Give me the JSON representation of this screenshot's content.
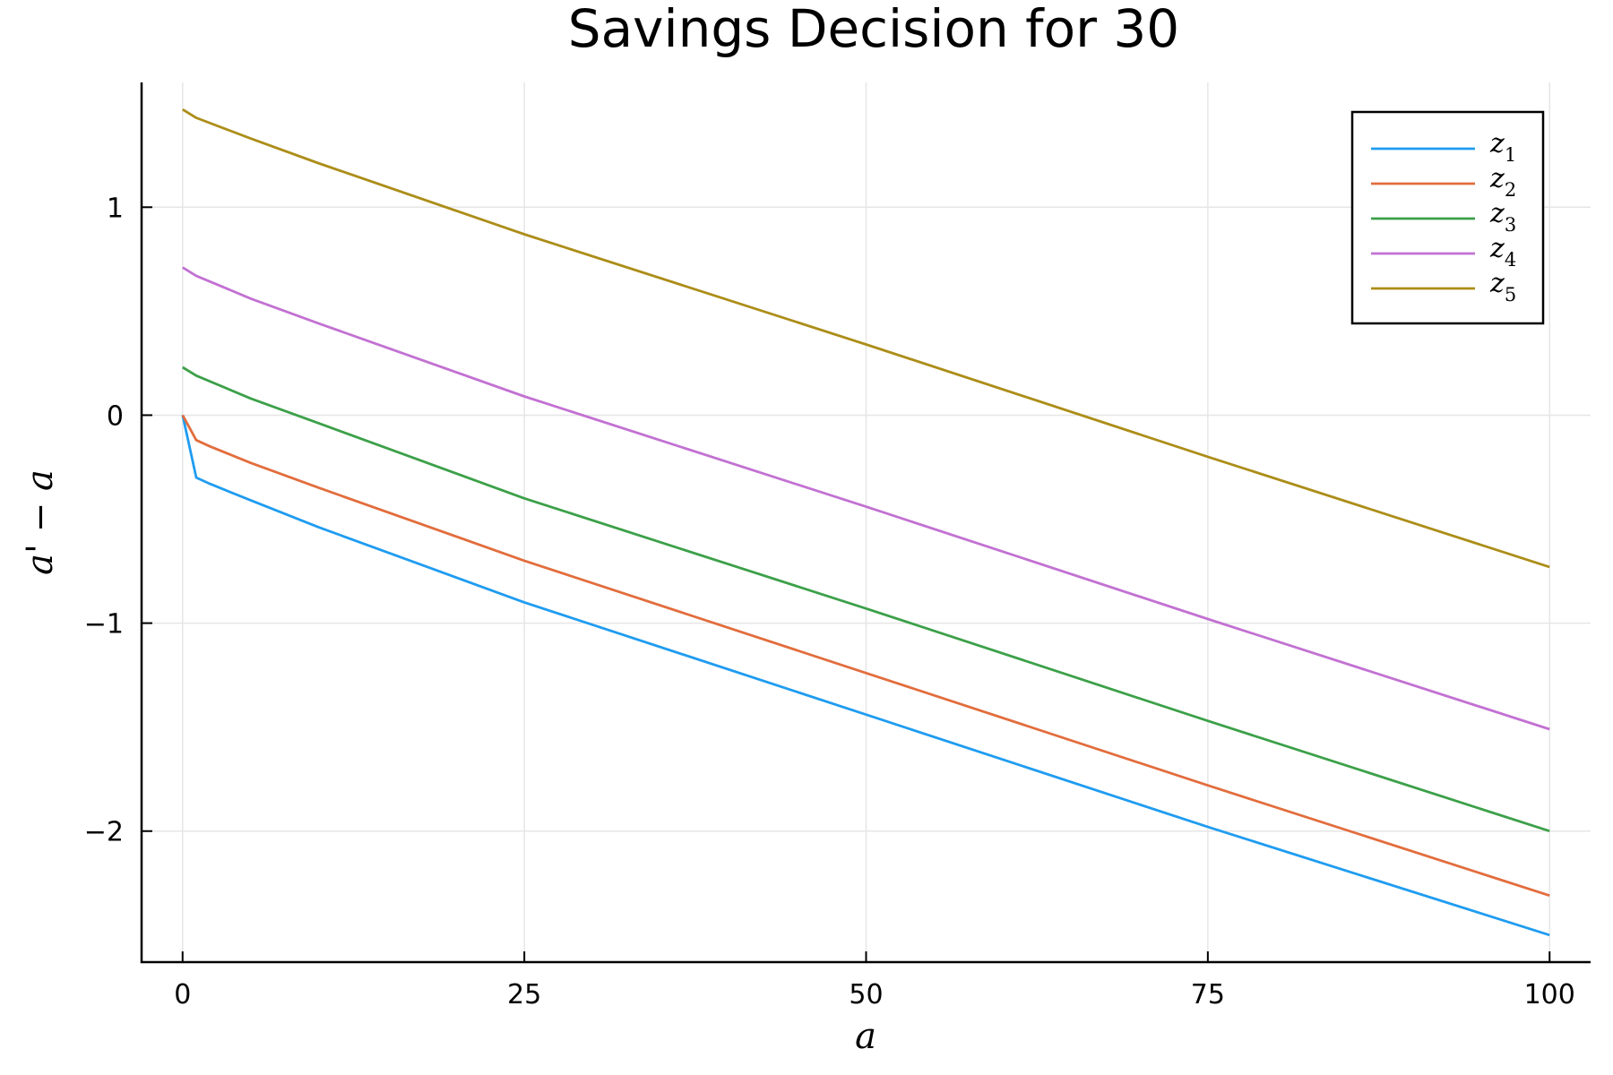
{
  "chart_data": {
    "type": "line",
    "title": "Savings Decision for 30",
    "xlabel": "a",
    "ylabel": "a' − a",
    "xlim": [
      -3,
      103
    ],
    "ylim": [
      -2.63,
      1.6
    ],
    "xticks": [
      0,
      25,
      50,
      75,
      100
    ],
    "xtick_labels": [
      "0",
      "25",
      "50",
      "75",
      "100"
    ],
    "yticks": [
      -2,
      -1,
      0,
      1
    ],
    "ytick_labels": [
      "−2",
      "−1",
      "0",
      "1"
    ],
    "grid": true,
    "legend_position": "top-right",
    "series": [
      {
        "name": "z",
        "sub": "1",
        "color": "#1f9cf0",
        "x": [
          0,
          1,
          2,
          5,
          10,
          25,
          50,
          75,
          100
        ],
        "y": [
          0,
          -0.3,
          -0.33,
          -0.41,
          -0.54,
          -0.9,
          -1.44,
          -1.98,
          -2.5
        ]
      },
      {
        "name": "z",
        "sub": "2",
        "color": "#e26d3d",
        "x": [
          0,
          1,
          2,
          5,
          10,
          25,
          50,
          75,
          100
        ],
        "y": [
          0,
          -0.12,
          -0.15,
          -0.23,
          -0.35,
          -0.7,
          -1.24,
          -1.78,
          -2.31
        ]
      },
      {
        "name": "z",
        "sub": "3",
        "color": "#3ca049",
        "x": [
          0,
          1,
          5,
          10,
          25,
          50,
          75,
          100
        ],
        "y": [
          0.23,
          0.19,
          0.08,
          -0.04,
          -0.4,
          -0.93,
          -1.47,
          -2.0
        ]
      },
      {
        "name": "z",
        "sub": "4",
        "color": "#c271d2",
        "x": [
          0,
          1,
          5,
          10,
          25,
          50,
          75,
          100
        ],
        "y": [
          0.71,
          0.67,
          0.56,
          0.44,
          0.09,
          -0.44,
          -0.98,
          -1.51
        ]
      },
      {
        "name": "z",
        "sub": "5",
        "color": "#ac8d18",
        "x": [
          0,
          1,
          5,
          10,
          25,
          50,
          75,
          100
        ],
        "y": [
          1.47,
          1.43,
          1.33,
          1.21,
          0.87,
          0.34,
          -0.2,
          -0.73
        ]
      }
    ]
  }
}
